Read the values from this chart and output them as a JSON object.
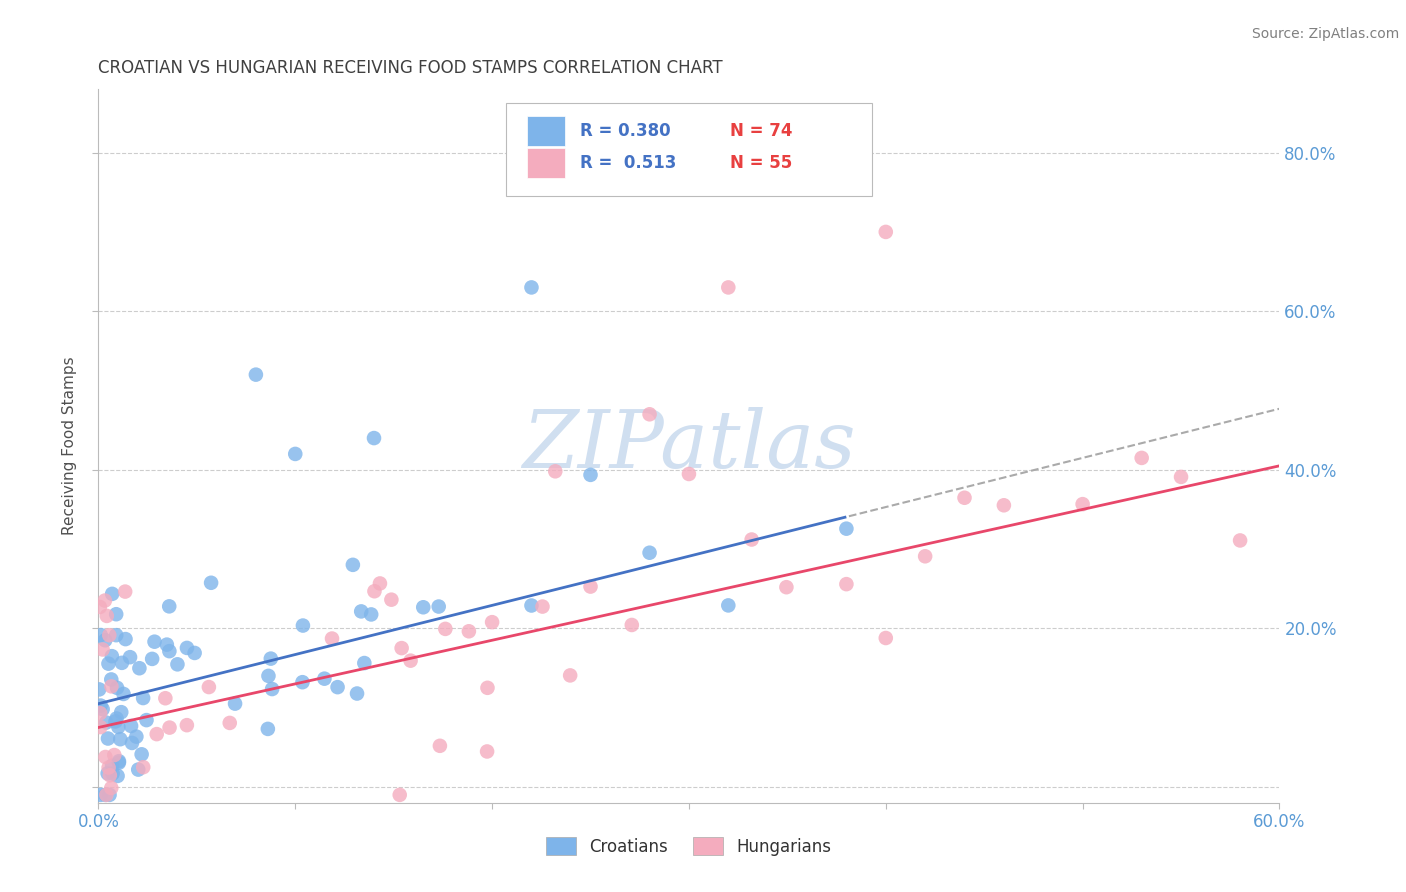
{
  "title": "CROATIAN VS HUNGARIAN RECEIVING FOOD STAMPS CORRELATION CHART",
  "source": "Source: ZipAtlas.com",
  "ylabel": "Receiving Food Stamps",
  "xlim": [
    0.0,
    0.6
  ],
  "ylim": [
    -0.02,
    0.88
  ],
  "croatian_R": 0.38,
  "croatian_N": 74,
  "hungarian_R": 0.513,
  "hungarian_N": 55,
  "croatian_color": "#7EB4EA",
  "hungarian_color": "#F4ACBE",
  "croatian_line_color": "#4472C4",
  "hungarian_line_color": "#E8476A",
  "title_color": "#404040",
  "source_color": "#808080",
  "axis_label_color": "#505050",
  "tick_color": "#5B9BD5",
  "grid_color": "#C8C8C8",
  "watermark_color": "#D0DFF0",
  "legend_R_color": "#4472C4",
  "legend_N_color": "#E84040",
  "legend_text_color": "#333333",
  "cr_line_intercept": 0.105,
  "cr_line_slope": 0.62,
  "hu_line_intercept": 0.075,
  "hu_line_slope": 0.55
}
